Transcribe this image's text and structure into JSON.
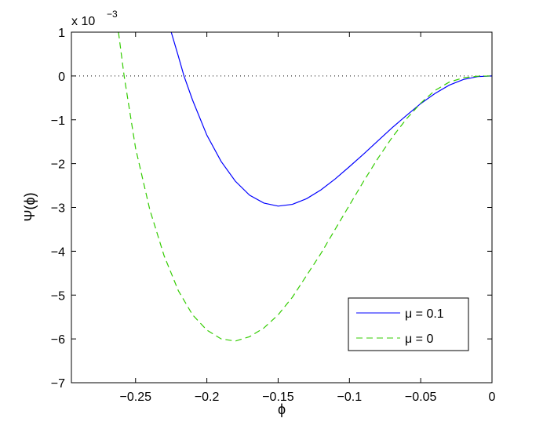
{
  "chart_data": {
    "type": "line",
    "title": "",
    "xlabel": "ϕ",
    "ylabel": "Ψ(ϕ)",
    "y_exponent_label": "x 10",
    "y_exponent_power": "−3",
    "xlim": [
      -0.295,
      0.0
    ],
    "ylim": [
      -7,
      1
    ],
    "x_ticks": [
      -0.25,
      -0.2,
      -0.15,
      -0.1,
      -0.05,
      0
    ],
    "x_tick_labels": [
      "−0.25",
      "−0.2",
      "−0.15",
      "−0.1",
      "−0.05",
      "0"
    ],
    "y_ticks": [
      -7,
      -6,
      -5,
      -4,
      -3,
      -2,
      -1,
      0,
      1
    ],
    "y_tick_labels": [
      "−7",
      "−6",
      "−5",
      "−4",
      "−3",
      "−2",
      "−1",
      "0",
      "1"
    ],
    "grid": false,
    "reference_line": {
      "y": 0,
      "style": "dotted"
    },
    "legend_position": "lower-right",
    "series": [
      {
        "name": "μ = 0.1",
        "color": "#0000ff",
        "dash": "solid",
        "x": [
          -0.225,
          -0.22,
          -0.216,
          -0.21,
          -0.2,
          -0.19,
          -0.18,
          -0.17,
          -0.16,
          -0.15,
          -0.14,
          -0.13,
          -0.12,
          -0.11,
          -0.1,
          -0.09,
          -0.08,
          -0.07,
          -0.06,
          -0.05,
          -0.04,
          -0.03,
          -0.02,
          -0.01,
          0.0
        ],
        "y": [
          1.0,
          0.45,
          0.0,
          -0.55,
          -1.35,
          -1.95,
          -2.4,
          -2.72,
          -2.9,
          -2.97,
          -2.93,
          -2.8,
          -2.6,
          -2.35,
          -2.07,
          -1.78,
          -1.48,
          -1.18,
          -0.9,
          -0.63,
          -0.4,
          -0.21,
          -0.08,
          -0.015,
          0.0
        ]
      },
      {
        "name": "μ = 0",
        "color": "#33cc00",
        "dash": "dashed",
        "x": [
          -0.262,
          -0.258,
          -0.25,
          -0.24,
          -0.23,
          -0.22,
          -0.21,
          -0.2,
          -0.19,
          -0.18,
          -0.17,
          -0.16,
          -0.15,
          -0.14,
          -0.13,
          -0.12,
          -0.11,
          -0.1,
          -0.09,
          -0.08,
          -0.07,
          -0.06,
          -0.05,
          -0.04,
          -0.03,
          -0.02,
          -0.01,
          0.0
        ],
        "y": [
          1.0,
          0.0,
          -1.65,
          -3.05,
          -4.1,
          -4.9,
          -5.45,
          -5.8,
          -6.0,
          -6.05,
          -5.95,
          -5.75,
          -5.45,
          -5.05,
          -4.55,
          -4.05,
          -3.5,
          -2.95,
          -2.4,
          -1.88,
          -1.4,
          -0.98,
          -0.62,
          -0.33,
          -0.14,
          -0.04,
          -0.005,
          0.0
        ]
      }
    ]
  }
}
